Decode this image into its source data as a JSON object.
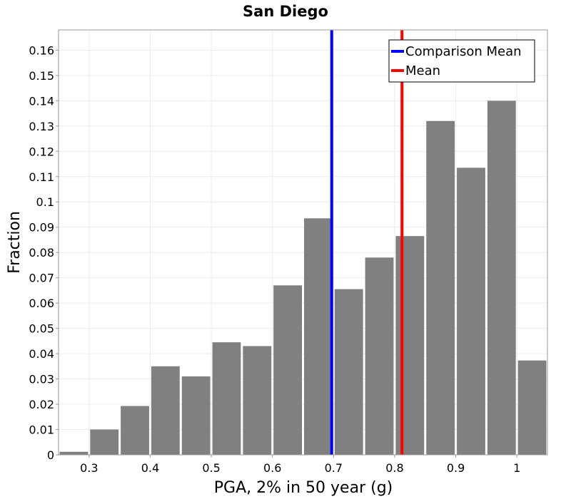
{
  "chart_data": {
    "type": "bar",
    "title": "San Diego",
    "xlabel": "PGA, 2% in 50 year (g)",
    "ylabel": "Fraction",
    "xlim": [
      0.25,
      1.05
    ],
    "ylim": [
      0,
      0.168
    ],
    "bin_width": 0.05,
    "bins": [
      {
        "center": 0.275,
        "value": 0.0012
      },
      {
        "center": 0.325,
        "value": 0.01
      },
      {
        "center": 0.375,
        "value": 0.0193
      },
      {
        "center": 0.425,
        "value": 0.035
      },
      {
        "center": 0.475,
        "value": 0.031
      },
      {
        "center": 0.525,
        "value": 0.0445
      },
      {
        "center": 0.575,
        "value": 0.043
      },
      {
        "center": 0.625,
        "value": 0.067
      },
      {
        "center": 0.675,
        "value": 0.0935
      },
      {
        "center": 0.725,
        "value": 0.0655
      },
      {
        "center": 0.775,
        "value": 0.078
      },
      {
        "center": 0.825,
        "value": 0.0865
      },
      {
        "center": 0.875,
        "value": 0.132
      },
      {
        "center": 0.925,
        "value": 0.1135
      },
      {
        "center": 0.975,
        "value": 0.14
      },
      {
        "center": 1.025,
        "value": 0.0373
      }
    ],
    "x_ticks": [
      0.3,
      0.4,
      0.5,
      0.6,
      0.7,
      0.8,
      0.9,
      1.0
    ],
    "x_tick_labels": [
      "0.3",
      "0.4",
      "0.5",
      "0.6",
      "0.7",
      "0.8",
      "0.9",
      "1"
    ],
    "y_ticks": [
      0,
      0.01,
      0.02,
      0.03,
      0.04,
      0.05,
      0.06,
      0.07,
      0.08,
      0.09,
      0.1,
      0.11,
      0.12,
      0.13,
      0.14,
      0.15,
      0.16
    ],
    "y_tick_labels": [
      "0",
      "0.01",
      "0.02",
      "0.03",
      "0.04",
      "0.05",
      "0.06",
      "0.07",
      "0.08",
      "0.09",
      "0.1",
      "0.11",
      "0.12",
      "0.13",
      "0.14",
      "0.15",
      "0.16"
    ],
    "vlines": [
      {
        "name": "Comparison Mean",
        "x": 0.697,
        "color": "#0000ff"
      },
      {
        "name": "Mean",
        "x": 0.812,
        "color": "#ff0000"
      }
    ],
    "legend": {
      "placement": "top-right",
      "entries": [
        {
          "label": "Comparison Mean",
          "color": "#0000ff"
        },
        {
          "label": "Mean",
          "color": "#ff0000"
        }
      ]
    },
    "grid": true,
    "bar_color": "#808080"
  }
}
